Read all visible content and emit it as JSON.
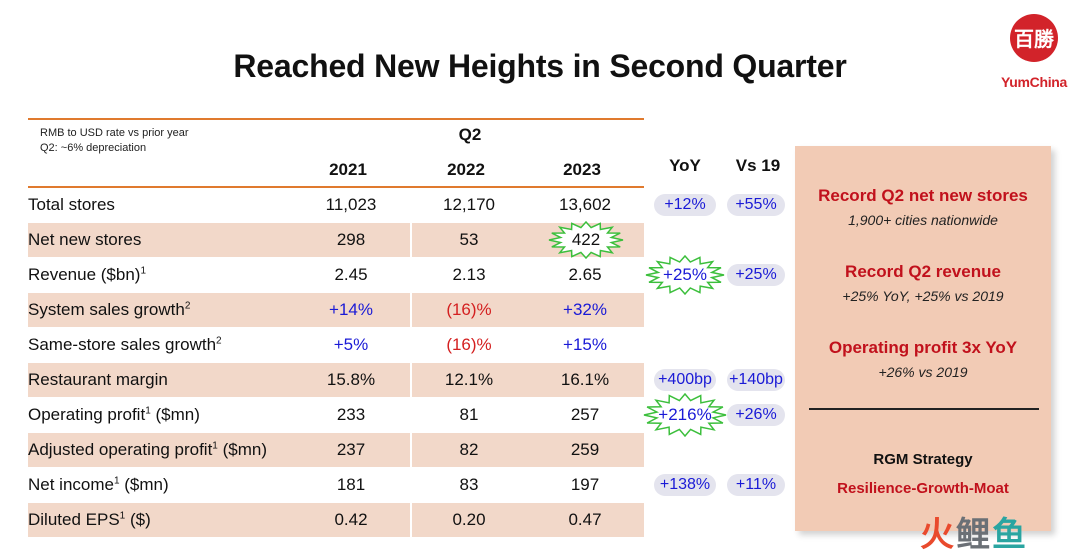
{
  "title": "Reached New Heights in Second Quarter",
  "logo": {
    "seal_text": "百勝",
    "brand": "YumChina"
  },
  "fx_note": {
    "line1": "RMB to USD rate vs prior year",
    "line2": "Q2: ~6% depreciation"
  },
  "header": {
    "period": "Q2",
    "years": [
      "2021",
      "2022",
      "2023"
    ],
    "yoy": "YoY",
    "vs19": "Vs 19"
  },
  "rows": [
    {
      "label": "Total stores",
      "sup": "",
      "suffix": "",
      "v2021": "11,023",
      "v2022": "12,170",
      "v2023": "13,602",
      "yoy": "+12%",
      "vs19": "+55%"
    },
    {
      "label": "Net new stores",
      "sup": "",
      "suffix": "",
      "v2021": "298",
      "v2022": "53",
      "v2023": "422",
      "yoy": "",
      "vs19": ""
    },
    {
      "label": "Revenue ($bn)",
      "sup": "1",
      "suffix": "",
      "v2021": "2.45",
      "v2022": "2.13",
      "v2023": "2.65",
      "yoy": "+25%",
      "vs19": "+25%"
    },
    {
      "label": "System sales growth",
      "sup": "2",
      "suffix": "",
      "v2021": "+14%",
      "v2022": "(16)%",
      "v2023": "+32%",
      "yoy": "",
      "vs19": ""
    },
    {
      "label": "Same-store sales growth",
      "sup": "2",
      "suffix": "",
      "v2021": "+5%",
      "v2022": "(16)%",
      "v2023": "+15%",
      "yoy": "",
      "vs19": ""
    },
    {
      "label": "Restaurant margin",
      "sup": "",
      "suffix": "",
      "v2021": "15.8%",
      "v2022": "12.1%",
      "v2023": "16.1%",
      "yoy": "+400bp",
      "vs19": "+140bp"
    },
    {
      "label": "Operating profit",
      "sup": "1",
      "suffix": " ($mn)",
      "v2021": "233",
      "v2022": "81",
      "v2023": "257",
      "yoy": "+216%",
      "vs19": "+26%"
    },
    {
      "label": "Adjusted operating profit",
      "sup": "1",
      "suffix": " ($mn)",
      "v2021": "237",
      "v2022": "82",
      "v2023": "259",
      "yoy": "",
      "vs19": ""
    },
    {
      "label": "Net income",
      "sup": "1",
      "suffix": " ($mn)",
      "v2021": "181",
      "v2022": "83",
      "v2023": "197",
      "yoy": "+138%",
      "vs19": "+11%"
    },
    {
      "label": "Diluted EPS",
      "sup": "1",
      "suffix": " ($)",
      "v2021": "0.42",
      "v2022": "0.20",
      "v2023": "0.47",
      "yoy": "",
      "vs19": ""
    }
  ],
  "highlights": {
    "h1": "Record Q2 net new stores",
    "s1": "1,900+ cities nationwide",
    "h2": "Record Q2 revenue",
    "s2": "+25% YoY, +25% vs 2019",
    "h3": "Operating profit 3x YoY",
    "s3": "+26% vs 2019",
    "strategy_title": "RGM Strategy",
    "strategy": "Resilience-Growth-Moat"
  },
  "watermark": {
    "c1": "火",
    "c2": "鲤",
    "c3": "鱼"
  },
  "colors": {
    "accent": "#e07a2e",
    "brand_red": "#c1111c",
    "positive": "#1a1ad6",
    "negative": "#d42020",
    "row_shade": "#f2d8c9",
    "panel": "#f2cbb5"
  }
}
